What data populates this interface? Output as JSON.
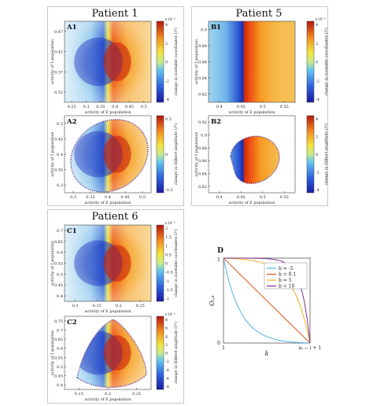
{
  "patients": [
    {
      "id": "p1",
      "title": "Patient 1"
    },
    {
      "id": "p5",
      "title": "Patient 5"
    },
    {
      "id": "p6",
      "title": "Patient 6"
    }
  ],
  "chart_data": [
    {
      "type": "heatmap",
      "id": "A1",
      "label": "A1",
      "shape": "rect",
      "mode": "spiral",
      "xlabel": "activity of E population",
      "ylabel": "activity of I population",
      "x_ticks": [
        "0.25",
        "0.3",
        "0.35",
        "0.4",
        "0.45",
        "0.5"
      ],
      "y_ticks": [
        "0.47",
        "0.42",
        "0.37",
        "0.32"
      ],
      "colorbar": {
        "label": "change in isostable coordinates (ℐ²)",
        "exponent": "×10⁻³",
        "ticks": [
          "4",
          "2",
          "0",
          "-2",
          "-4"
        ]
      }
    },
    {
      "type": "heatmap",
      "id": "A2",
      "label": "A2",
      "shape": "ellipse",
      "mode": "spiral",
      "xlabel": "activity of E population",
      "ylabel": "activity of I population",
      "x_ticks": [
        "0.3",
        "0.35",
        "0.4",
        "0.45",
        "0.5"
      ],
      "y_ticks": [
        "0.5",
        "0.45",
        "0.4",
        "0.35",
        "0.3"
      ],
      "colorbar": {
        "label": "change in Hilbert amplitude (ℐᴴ)",
        "exponent": "",
        "ticks": [
          "0.5",
          "0",
          "-0.5"
        ]
      }
    },
    {
      "type": "heatmap",
      "id": "B1",
      "label": "B1",
      "shape": "rect",
      "mode": "split",
      "xlabel": "activity of E population",
      "ylabel": "activity of I population",
      "x_ticks": [
        "0.4",
        "0.45",
        "0.5",
        "0.55"
      ],
      "y_ticks": [
        "0.9",
        "0.88",
        "0.86",
        "0.84",
        "0.82"
      ],
      "colorbar": {
        "label": "change in isostable coordinates (ℐ²)",
        "exponent": "×10⁻³",
        "ticks": [
          "4",
          "2",
          "0",
          "-2",
          "-4"
        ]
      }
    },
    {
      "type": "heatmap",
      "id": "B2",
      "label": "B2",
      "shape": "blob",
      "mode": "split",
      "xlabel": "activity of E population",
      "ylabel": "activity of I population",
      "x_ticks": [
        "0.4",
        "0.45",
        "0.5",
        "0.55"
      ],
      "y_ticks": [
        "0.92",
        "0.9",
        "0.88",
        "0.86",
        "0.84",
        "0.82"
      ],
      "colorbar": {
        "label": "change in Hilbert amplitude (ℐᴴ)",
        "exponent": "",
        "ticks": [
          "4",
          "2",
          "0",
          "-2",
          "-4"
        ]
      }
    },
    {
      "type": "heatmap",
      "id": "C1",
      "label": "C1",
      "shape": "rect",
      "mode": "spiral",
      "xlabel": "activity of E population",
      "ylabel": "activity of I population",
      "x_ticks": [
        "0.1",
        "0.15",
        "0.2",
        "0.25"
      ],
      "y_ticks": [
        "0.7",
        "0.65",
        "0.6",
        "0.55",
        "0.5",
        "0.45",
        "0.4"
      ],
      "colorbar": {
        "label": "change in isostable coordinates (ℐ²)",
        "exponent": "×10⁻³",
        "ticks": [
          "2",
          "1.5",
          "1",
          "0.5",
          "0",
          "-0.5",
          "-1",
          "-1.5",
          "-2"
        ]
      }
    },
    {
      "type": "heatmap",
      "id": "C2",
      "label": "C2",
      "shape": "tri",
      "mode": "spiral",
      "xlabel": "activity of E population",
      "ylabel": "activity of I population",
      "x_ticks": [
        "0.15",
        "0.2",
        "0.25"
      ],
      "y_ticks": [
        "0.75",
        "0.7",
        "0.65",
        "0.6",
        "0.55",
        "0.5",
        "0.45",
        "0.4"
      ],
      "colorbar": {
        "label": "change in Hilbert amplitude (ℐᴴ)",
        "exponent": "×10⁻³",
        "ticks": [
          "8",
          "6",
          "4",
          "2",
          "0",
          "-2",
          "-4",
          "-6",
          "-8"
        ]
      }
    },
    {
      "type": "line",
      "id": "D",
      "label": "D",
      "xlabel": "k",
      "ylabel": "Oᵢ,ₖ",
      "x_ticks": [
        "1",
        "nᵢ − i + 1"
      ],
      "y_ticks": [
        "0",
        "1"
      ],
      "series": [
        {
          "name": "b = -5",
          "color": "#4db3e6",
          "b": -5
        },
        {
          "name": "b = 0.1",
          "color": "#d95319",
          "b": 0.1
        },
        {
          "name": "b = 5",
          "color": "#edb120",
          "b": 5
        },
        {
          "name": "b = 10",
          "color": "#7e2f8e",
          "b": 10
        }
      ]
    }
  ]
}
